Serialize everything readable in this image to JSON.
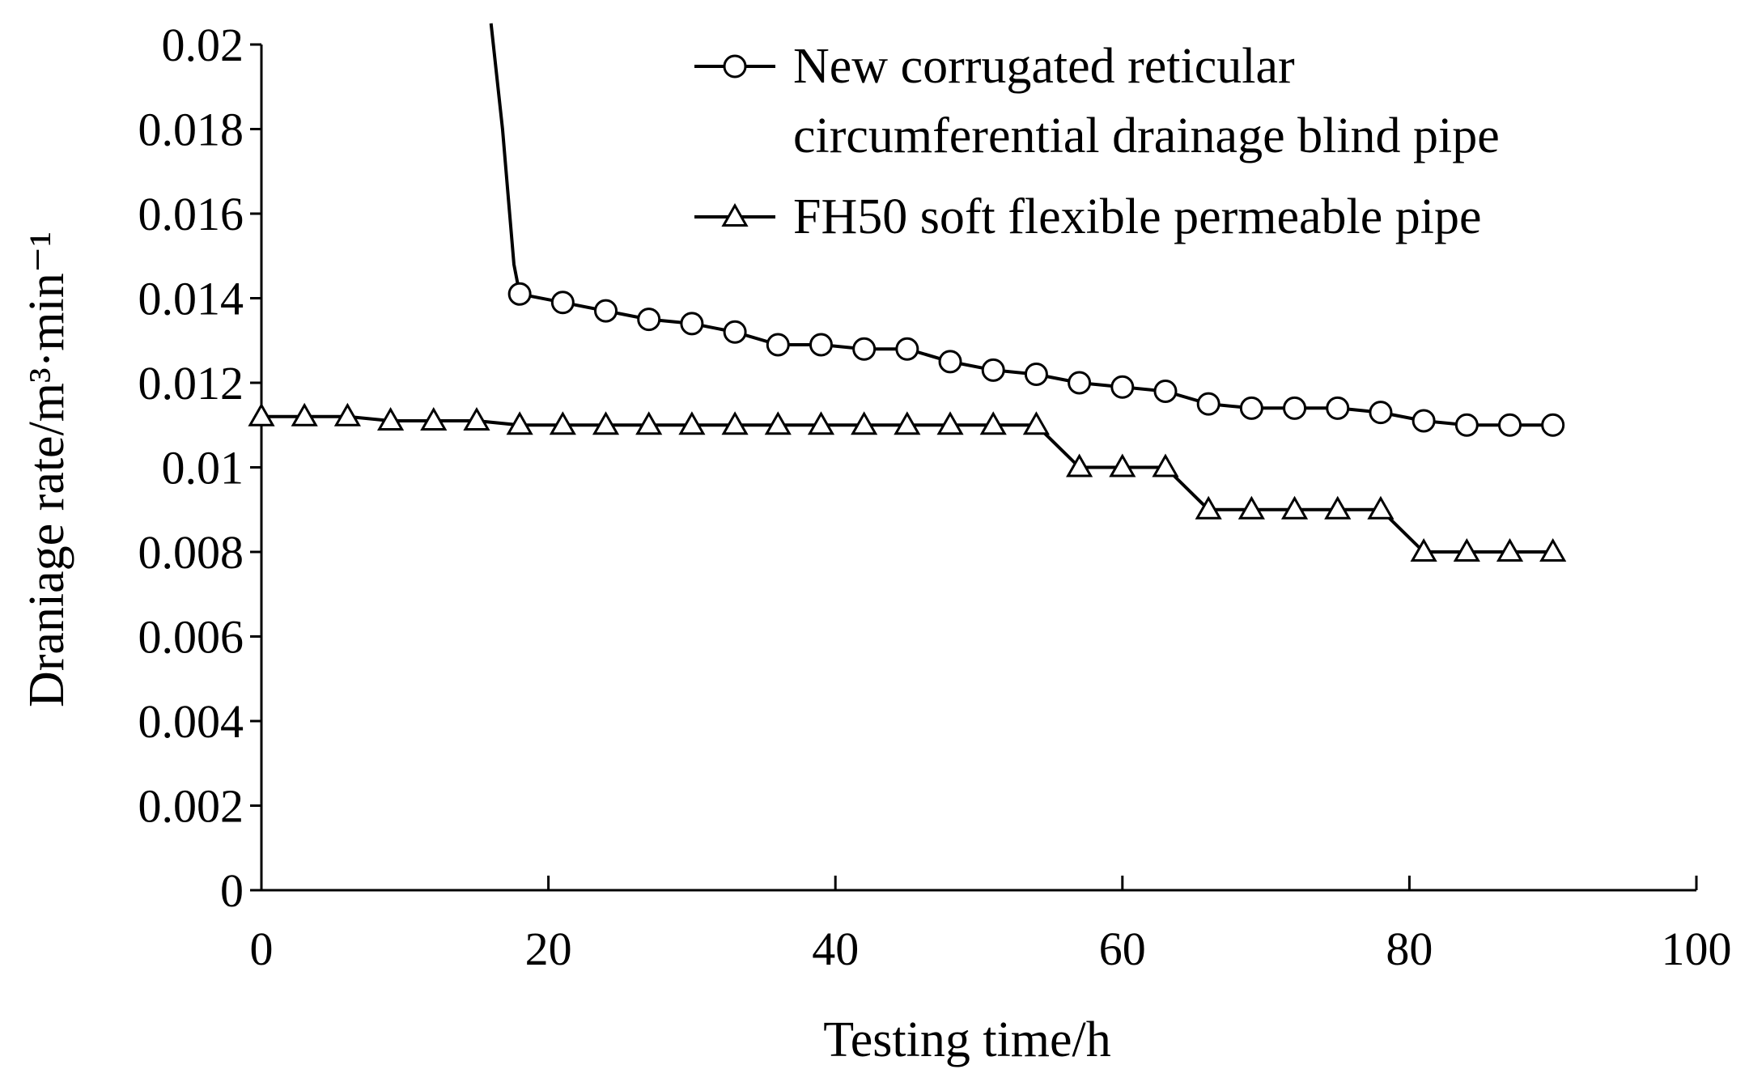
{
  "chart_data": {
    "type": "line",
    "title": "",
    "xlabel": "Testing time/h",
    "ylabel": "Draniage rate/m³·min⁻¹",
    "xlim": [
      0,
      100
    ],
    "ylim": [
      0,
      0.02
    ],
    "x_ticks": [
      0,
      20,
      40,
      60,
      80,
      100
    ],
    "x_tick_labels": [
      "0",
      "20",
      "40",
      "60",
      "80",
      "100"
    ],
    "y_ticks": [
      0,
      0.002,
      0.004,
      0.006,
      0.008,
      0.01,
      0.012,
      0.014,
      0.016,
      0.018,
      0.02
    ],
    "y_tick_labels": [
      "0",
      "0.002",
      "0.004",
      "0.006",
      "0.008",
      "0.01",
      "0.012",
      "0.014",
      "0.016",
      "0.018",
      "0.02"
    ],
    "grid": false,
    "legend_position": "top-right",
    "series": [
      {
        "name": "New corrugated reticular circumferential drainage blind pipe",
        "legend_lines": [
          "New corrugated reticular",
          "circumferential drainage blind pipe"
        ],
        "marker": "circle",
        "leadin": [
          [
            16,
            0.0205
          ],
          [
            16.8,
            0.018
          ],
          [
            17.3,
            0.016
          ],
          [
            17.6,
            0.0148
          ],
          [
            18,
            0.0141
          ]
        ],
        "x": [
          18,
          21,
          24,
          27,
          30,
          33,
          36,
          39,
          42,
          45,
          48,
          51,
          54,
          57,
          60,
          63,
          66,
          69,
          72,
          75,
          78,
          81,
          84,
          87,
          90
        ],
        "y": [
          0.0141,
          0.0139,
          0.0137,
          0.0135,
          0.0134,
          0.0132,
          0.0129,
          0.0129,
          0.0128,
          0.0128,
          0.0125,
          0.0123,
          0.0122,
          0.012,
          0.0119,
          0.0118,
          0.0115,
          0.0114,
          0.0114,
          0.0114,
          0.0113,
          0.0111,
          0.011,
          0.011,
          0.011
        ]
      },
      {
        "name": "FH50 soft flexible permeable pipe",
        "legend_lines": [
          "FH50 soft flexible permeable pipe"
        ],
        "marker": "triangle",
        "x": [
          0,
          3,
          6,
          9,
          12,
          15,
          18,
          21,
          24,
          27,
          30,
          33,
          36,
          39,
          42,
          45,
          48,
          51,
          54,
          57,
          60,
          63,
          66,
          69,
          72,
          75,
          78,
          81,
          84,
          87,
          90
        ],
        "y": [
          0.0112,
          0.0112,
          0.0112,
          0.0111,
          0.0111,
          0.0111,
          0.011,
          0.011,
          0.011,
          0.011,
          0.011,
          0.011,
          0.011,
          0.011,
          0.011,
          0.011,
          0.011,
          0.011,
          0.011,
          0.01,
          0.01,
          0.01,
          0.009,
          0.009,
          0.009,
          0.009,
          0.009,
          0.008,
          0.008,
          0.008,
          0.008
        ]
      }
    ]
  }
}
